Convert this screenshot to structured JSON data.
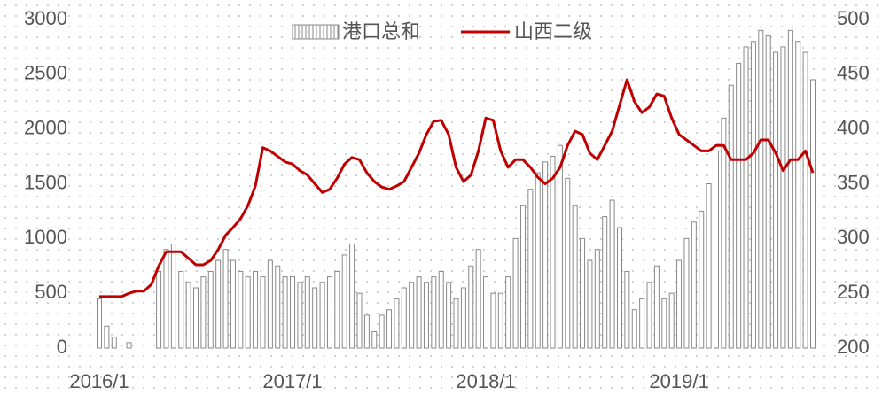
{
  "chart_data": {
    "type": "bar-line",
    "categories": [
      "2016/1",
      null,
      null,
      null,
      null,
      null,
      null,
      null,
      null,
      null,
      null,
      null,
      null,
      null,
      null,
      null,
      null,
      null,
      null,
      null,
      null,
      null,
      null,
      null,
      null,
      null,
      "2017/1",
      null,
      null,
      null,
      null,
      null,
      null,
      null,
      null,
      null,
      null,
      null,
      null,
      null,
      null,
      null,
      null,
      null,
      null,
      null,
      null,
      null,
      null,
      null,
      null,
      null,
      "2018/1",
      null,
      null,
      null,
      null,
      null,
      null,
      null,
      null,
      null,
      null,
      null,
      null,
      null,
      null,
      null,
      null,
      null,
      null,
      null,
      null,
      null,
      null,
      null,
      null,
      null,
      "2019/1",
      null,
      null,
      null,
      null,
      null,
      null,
      null,
      null,
      null,
      null,
      null,
      null,
      null,
      null,
      null,
      null,
      null,
      null
    ],
    "series": [
      {
        "name": "港口总和",
        "color": "#888888",
        "values": [
          450,
          200,
          100,
          0,
          50,
          0,
          0,
          0,
          700,
          900,
          950,
          700,
          600,
          550,
          650,
          700,
          800,
          900,
          800,
          700,
          650,
          700,
          650,
          800,
          750,
          650,
          650,
          600,
          650,
          550,
          600,
          650,
          700,
          850,
          950,
          500,
          300,
          150,
          300,
          350,
          450,
          550,
          600,
          650,
          600,
          650,
          700,
          600,
          450,
          550,
          750,
          900,
          650,
          500,
          500,
          650,
          1000,
          1300,
          1450,
          1600,
          1700,
          1750,
          1850,
          1550,
          1300,
          1000,
          800,
          900,
          1200,
          1350,
          1100,
          700,
          350,
          450,
          600,
          750,
          450,
          500,
          800,
          1000,
          1150,
          1250,
          1500,
          1800,
          2100,
          2400,
          2600,
          2750,
          2800,
          2900,
          2850,
          2700,
          2750,
          2900,
          2800,
          2700,
          2450
        ]
      },
      {
        "name": "山西二级",
        "color": "#c00000",
        "axis": "y2",
        "values": [
          247,
          247,
          247,
          247,
          250,
          252,
          252,
          258,
          275,
          288,
          288,
          288,
          282,
          276,
          276,
          280,
          290,
          303,
          310,
          318,
          330,
          348,
          383,
          380,
          375,
          370,
          368,
          362,
          358,
          350,
          342,
          345,
          355,
          368,
          374,
          372,
          360,
          352,
          347,
          345,
          348,
          352,
          365,
          378,
          395,
          407,
          408,
          395,
          365,
          352,
          358,
          380,
          410,
          408,
          380,
          365,
          372,
          372,
          365,
          356,
          350,
          355,
          365,
          385,
          398,
          395,
          378,
          372,
          385,
          398,
          422,
          445,
          425,
          415,
          420,
          432,
          430,
          410,
          395,
          390,
          385,
          380,
          380,
          385,
          385,
          372,
          372,
          372,
          378,
          390,
          390,
          378,
          362,
          372,
          372,
          380,
          360
        ]
      }
    ],
    "ylim": [
      0,
      3000
    ],
    "yticks": [
      0,
      500,
      1000,
      1500,
      2000,
      2500,
      3000
    ],
    "y2lim": [
      200,
      500
    ],
    "y2ticks": [
      200,
      250,
      300,
      350,
      400,
      450,
      500
    ],
    "legend": "top"
  }
}
